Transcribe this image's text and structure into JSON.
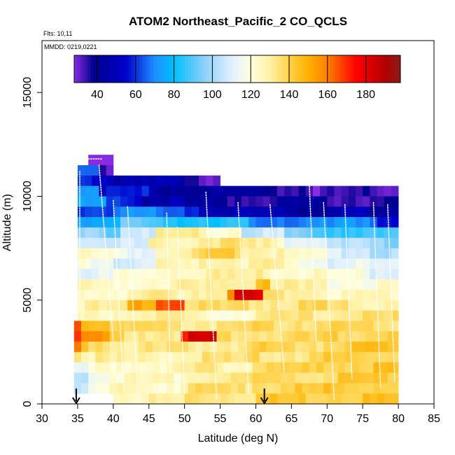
{
  "chart_data": {
    "type": "heatmap",
    "title": "ATOM2 Northeast_Pacific_2 CO_QCLS",
    "flights_label": "Flts: 10,11",
    "dates_label": "MMDD: 0219,0221",
    "xlabel": "Latitude (deg N)",
    "ylabel": "Altitude (m)",
    "xlim": [
      30,
      85
    ],
    "ylim": [
      0,
      17500
    ],
    "x_ticks": [
      30,
      35,
      40,
      45,
      50,
      55,
      60,
      65,
      70,
      75,
      80,
      85
    ],
    "y_ticks": [
      0,
      5000,
      10000,
      15000
    ],
    "colorbar": {
      "range": [
        28,
        198
      ],
      "ticks": [
        40,
        60,
        80,
        100,
        120,
        140,
        160,
        180
      ],
      "stops": [
        {
          "v": 28,
          "c": "#8a2be2"
        },
        {
          "v": 38,
          "c": "#00008b"
        },
        {
          "v": 55,
          "c": "#0000cd"
        },
        {
          "v": 70,
          "c": "#1e90ff"
        },
        {
          "v": 80,
          "c": "#00bfff"
        },
        {
          "v": 95,
          "c": "#87cefa"
        },
        {
          "v": 110,
          "c": "#e0f0ff"
        },
        {
          "v": 120,
          "c": "#ffffe0"
        },
        {
          "v": 130,
          "c": "#fff2a8"
        },
        {
          "v": 140,
          "c": "#ffd24a"
        },
        {
          "v": 150,
          "c": "#ffb000"
        },
        {
          "v": 160,
          "c": "#ff7f00"
        },
        {
          "v": 175,
          "c": "#ff0000"
        },
        {
          "v": 190,
          "c": "#b30000"
        },
        {
          "v": 198,
          "c": "#8b1a1a"
        }
      ]
    },
    "markers_lat": [
      34.8,
      61.2
    ],
    "lat_bins": [
      34.5,
      35.5,
      36.5,
      37.5,
      38.5,
      39.5,
      40.5,
      41.5,
      42.5,
      43.5,
      44.5,
      45.5,
      46.5,
      47.5,
      48.5,
      49.5,
      50.5,
      51.5,
      52.5,
      53.5,
      54.5,
      55.5,
      56.5,
      57.5,
      58.5,
      59.5,
      60.5,
      61.5,
      62.5,
      63.5,
      64.5,
      65.5,
      66.5,
      67.5,
      68.5,
      69.5,
      70.5,
      71.5,
      72.5,
      73.5,
      74.5,
      75.5,
      76.5,
      77.5,
      78.5,
      79.5,
      80.5
    ],
    "alt_bins": [
      0,
      500,
      1000,
      1500,
      2000,
      2500,
      3000,
      3500,
      4000,
      4500,
      5000,
      5500,
      6000,
      6500,
      7000,
      7500,
      8000,
      8500,
      9000,
      9500,
      10000,
      10500,
      11000,
      11500,
      12000
    ],
    "rows": [
      {
        "alt": 11500,
        "lat": [
          36.5,
          40.0
        ],
        "v": 30
      },
      {
        "alt": 11000,
        "lat": [
          35.0,
          40.0
        ],
        "v": 65,
        "segments": [
          [
            38.0,
            40.0,
            30
          ]
        ]
      },
      {
        "alt": 10500,
        "lat": [
          35.0,
          55.0
        ],
        "v": 55,
        "segments": [
          [
            40.0,
            45.0,
            50
          ],
          [
            45.0,
            50.0,
            45
          ],
          [
            50.0,
            55.0,
            35
          ]
        ]
      },
      {
        "alt": 10000,
        "lat": [
          35.0,
          80.0
        ],
        "v": 45,
        "segments": [
          [
            35.0,
            38.0,
            75
          ],
          [
            38.0,
            45.0,
            55
          ],
          [
            55.0,
            62.0,
            40
          ],
          [
            62.0,
            68.0,
            38
          ],
          [
            68.0,
            75.0,
            32
          ],
          [
            75.0,
            80.0,
            34
          ]
        ]
      },
      {
        "alt": 9500,
        "lat": [
          35.0,
          80.0
        ],
        "v": 45,
        "segments": [
          [
            35.0,
            39.0,
            72
          ],
          [
            39.0,
            44.0,
            60
          ],
          [
            44.0,
            50.0,
            48
          ],
          [
            50.0,
            56.0,
            40
          ],
          [
            56.0,
            62.0,
            38
          ],
          [
            62.0,
            70.0,
            40
          ],
          [
            70.0,
            77.0,
            36
          ],
          [
            77.0,
            80.0,
            38
          ]
        ]
      },
      {
        "alt": 9000,
        "lat": [
          35.0,
          80.0
        ],
        "v": 60,
        "segments": [
          [
            35.0,
            40.0,
            65
          ],
          [
            40.0,
            46.0,
            70
          ],
          [
            46.0,
            52.0,
            62
          ],
          [
            52.0,
            58.0,
            50
          ],
          [
            58.0,
            64.0,
            45
          ],
          [
            64.0,
            70.0,
            44
          ],
          [
            70.0,
            76.0,
            48
          ],
          [
            76.0,
            80.0,
            40
          ]
        ]
      },
      {
        "alt": 8500,
        "lat": [
          35.0,
          80.0
        ],
        "v": 78,
        "segments": [
          [
            35.0,
            41.0,
            75
          ],
          [
            41.0,
            47.0,
            90
          ],
          [
            47.0,
            53.0,
            85
          ],
          [
            53.0,
            59.0,
            80
          ],
          [
            59.0,
            65.0,
            70
          ],
          [
            65.0,
            71.0,
            68
          ],
          [
            71.0,
            77.0,
            72
          ],
          [
            77.0,
            80.0,
            60
          ]
        ]
      },
      {
        "alt": 8000,
        "lat": [
          35.0,
          80.0
        ],
        "v": 100,
        "segments": [
          [
            35.0,
            41.0,
            95
          ],
          [
            41.0,
            46.0,
            110
          ],
          [
            46.0,
            52.0,
            130
          ],
          [
            52.0,
            58.0,
            125
          ],
          [
            58.0,
            64.0,
            105
          ],
          [
            64.0,
            70.0,
            92
          ],
          [
            70.0,
            76.0,
            88
          ],
          [
            76.0,
            80.0,
            85
          ]
        ]
      },
      {
        "alt": 7500,
        "lat": [
          35.0,
          80.0
        ],
        "v": 118,
        "segments": [
          [
            35.0,
            40.0,
            110
          ],
          [
            40.0,
            45.0,
            105
          ],
          [
            45.0,
            52.0,
            128
          ],
          [
            52.0,
            58.0,
            136
          ],
          [
            58.0,
            64.0,
            128
          ],
          [
            64.0,
            70.0,
            115
          ],
          [
            70.0,
            76.0,
            100
          ],
          [
            76.0,
            80.0,
            95
          ]
        ]
      },
      {
        "alt": 7000,
        "lat": [
          35.0,
          80.0
        ],
        "v": 122,
        "segments": [
          [
            35.0,
            40.0,
            122
          ],
          [
            40.0,
            46.0,
            115
          ],
          [
            46.0,
            52.0,
            130
          ],
          [
            52.0,
            58.0,
            138
          ],
          [
            58.0,
            64.0,
            132
          ],
          [
            64.0,
            70.0,
            120
          ],
          [
            70.0,
            76.0,
            110
          ],
          [
            76.0,
            80.0,
            100
          ]
        ]
      },
      {
        "alt": 6500,
        "lat": [
          35.0,
          80.0
        ],
        "v": 120,
        "segments": [
          [
            35.0,
            40.0,
            118
          ],
          [
            40.0,
            46.0,
            110
          ],
          [
            46.0,
            52.0,
            125
          ],
          [
            52.0,
            58.0,
            132
          ],
          [
            58.0,
            64.0,
            128
          ],
          [
            64.0,
            70.0,
            120
          ],
          [
            70.0,
            76.0,
            112
          ],
          [
            76.0,
            80.0,
            108
          ]
        ]
      },
      {
        "alt": 6000,
        "lat": [
          35.0,
          80.0
        ],
        "v": 122,
        "segments": [
          [
            35.0,
            40.0,
            112
          ],
          [
            40.0,
            46.0,
            118
          ],
          [
            46.0,
            52.0,
            126
          ],
          [
            52.0,
            58.0,
            130
          ],
          [
            58.0,
            64.0,
            128
          ],
          [
            64.0,
            70.0,
            124
          ],
          [
            70.0,
            76.0,
            120
          ],
          [
            76.0,
            80.0,
            112
          ]
        ]
      },
      {
        "alt": 5500,
        "lat": [
          35.0,
          80.0
        ],
        "v": 126,
        "segments": [
          [
            35.0,
            45.0,
            124
          ],
          [
            45.0,
            55.0,
            128
          ],
          [
            55.0,
            60.0,
            132
          ],
          [
            60.0,
            62.0,
            150
          ],
          [
            62.0,
            70.0,
            128
          ],
          [
            70.0,
            80.0,
            122
          ]
        ]
      },
      {
        "alt": 5000,
        "lat": [
          35.0,
          80.0
        ],
        "v": 128,
        "segments": [
          [
            35.0,
            45.0,
            126
          ],
          [
            45.0,
            50.0,
            130
          ],
          [
            50.0,
            56.0,
            132
          ],
          [
            56.0,
            57.0,
            158
          ],
          [
            57.0,
            61.0,
            178
          ],
          [
            61.0,
            70.0,
            132
          ],
          [
            70.0,
            80.0,
            126
          ]
        ]
      },
      {
        "alt": 4500,
        "lat": [
          35.0,
          80.0
        ],
        "v": 130,
        "segments": [
          [
            35.0,
            42.0,
            128
          ],
          [
            42.0,
            46.0,
            150
          ],
          [
            46.0,
            50.0,
            168
          ],
          [
            50.0,
            60.0,
            134
          ],
          [
            60.0,
            70.0,
            136
          ],
          [
            70.0,
            80.0,
            132
          ]
        ]
      },
      {
        "alt": 4000,
        "lat": [
          35.0,
          80.0
        ],
        "v": 132,
        "segments": [
          [
            35.0,
            40.0,
            124
          ],
          [
            40.0,
            50.0,
            130
          ],
          [
            50.0,
            60.0,
            124
          ],
          [
            60.0,
            70.0,
            132
          ],
          [
            70.0,
            80.0,
            134
          ]
        ]
      },
      {
        "alt": 3500,
        "lat": [
          34.5,
          80.0
        ],
        "v": 136,
        "segments": [
          [
            34.5,
            36.0,
            170
          ],
          [
            36.0,
            40.0,
            150
          ],
          [
            40.0,
            50.0,
            136
          ],
          [
            50.0,
            60.0,
            134
          ],
          [
            60.0,
            70.0,
            138
          ],
          [
            70.0,
            80.0,
            136
          ]
        ]
      },
      {
        "alt": 3000,
        "lat": [
          34.5,
          80.0
        ],
        "v": 138,
        "segments": [
          [
            34.5,
            36.0,
            165
          ],
          [
            36.0,
            40.0,
            152
          ],
          [
            40.0,
            50.0,
            136
          ],
          [
            50.0,
            51.0,
            168
          ],
          [
            51.0,
            55.0,
            182
          ],
          [
            55.0,
            60.0,
            138
          ],
          [
            60.0,
            70.0,
            136
          ],
          [
            70.0,
            80.0,
            140
          ]
        ]
      },
      {
        "alt": 2500,
        "lat": [
          34.5,
          80.0
        ],
        "v": 135,
        "segments": [
          [
            34.5,
            36.0,
            160
          ],
          [
            36.0,
            40.0,
            140
          ],
          [
            40.0,
            50.0,
            132
          ],
          [
            50.0,
            60.0,
            134
          ],
          [
            60.0,
            70.0,
            138
          ],
          [
            70.0,
            80.0,
            142
          ]
        ]
      },
      {
        "alt": 2000,
        "lat": [
          34.5,
          80.0
        ],
        "v": 132,
        "segments": [
          [
            34.5,
            36.0,
            136
          ],
          [
            36.0,
            40.0,
            130
          ],
          [
            40.0,
            50.0,
            128
          ],
          [
            50.0,
            60.0,
            132
          ],
          [
            60.0,
            70.0,
            136
          ],
          [
            70.0,
            80.0,
            140
          ]
        ]
      },
      {
        "alt": 1500,
        "lat": [
          34.5,
          80.0
        ],
        "v": 130,
        "segments": [
          [
            34.5,
            37.0,
            112
          ],
          [
            37.0,
            40.0,
            120
          ],
          [
            40.0,
            50.0,
            126
          ],
          [
            50.0,
            60.0,
            130
          ],
          [
            60.0,
            70.0,
            138
          ],
          [
            70.0,
            80.0,
            142
          ]
        ]
      },
      {
        "alt": 1000,
        "lat": [
          34.5,
          80.0
        ],
        "v": 130,
        "segments": [
          [
            34.5,
            37.0,
            108
          ],
          [
            37.0,
            40.0,
            118
          ],
          [
            40.0,
            50.0,
            124
          ],
          [
            50.0,
            60.0,
            132
          ],
          [
            60.0,
            70.0,
            138
          ],
          [
            70.0,
            80.0,
            140
          ]
        ]
      },
      {
        "alt": 500,
        "lat": [
          34.5,
          80.0
        ],
        "v": 132,
        "segments": [
          [
            34.5,
            37.0,
            105
          ],
          [
            37.0,
            40.0,
            115
          ],
          [
            40.0,
            50.0,
            126
          ],
          [
            50.0,
            60.0,
            134
          ],
          [
            60.0,
            70.0,
            140
          ],
          [
            70.0,
            80.0,
            142
          ]
        ]
      },
      {
        "alt": 0,
        "lat": [
          40.0,
          80.0
        ],
        "v": 134,
        "segments": [
          [
            40.0,
            50.0,
            128
          ],
          [
            50.0,
            60.0,
            136
          ],
          [
            60.0,
            70.0,
            142
          ],
          [
            70.0,
            80.0,
            144
          ]
        ]
      }
    ],
    "profiles": [
      {
        "lat0": 35.3,
        "lat1": 35.3,
        "alt0": 11200,
        "alt1": 5000
      },
      {
        "lat0": 36.5,
        "lat1": 38.5,
        "alt0": 11800,
        "alt1": 11800
      },
      {
        "lat0": 38.0,
        "lat1": 40.0,
        "alt0": 11500,
        "alt1": 3000
      },
      {
        "lat0": 40.0,
        "lat1": 41.5,
        "alt0": 9800,
        "alt1": 500
      },
      {
        "lat0": 42.0,
        "lat1": 43.5,
        "alt0": 9500,
        "alt1": 200
      },
      {
        "lat0": 47.5,
        "lat1": 48.0,
        "alt0": 9200,
        "alt1": 1500
      },
      {
        "lat0": 49.0,
        "lat1": 50.0,
        "alt0": 8500,
        "alt1": 500
      },
      {
        "lat0": 53.0,
        "lat1": 54.5,
        "alt0": 10200,
        "alt1": 200
      },
      {
        "lat0": 57.5,
        "lat1": 59.0,
        "alt0": 9700,
        "alt1": 500
      },
      {
        "lat0": 62.0,
        "lat1": 64.0,
        "alt0": 9600,
        "alt1": 1500
      },
      {
        "lat0": 67.5,
        "lat1": 68.5,
        "alt0": 10600,
        "alt1": 3000
      },
      {
        "lat0": 69.5,
        "lat1": 71.0,
        "alt0": 9700,
        "alt1": 200
      },
      {
        "lat0": 72.5,
        "lat1": 73.5,
        "alt0": 9600,
        "alt1": 1200
      },
      {
        "lat0": 76.5,
        "lat1": 77.5,
        "alt0": 9700,
        "alt1": 800
      },
      {
        "lat0": 78.5,
        "lat1": 79.5,
        "alt0": 9600,
        "alt1": 1000
      }
    ]
  }
}
